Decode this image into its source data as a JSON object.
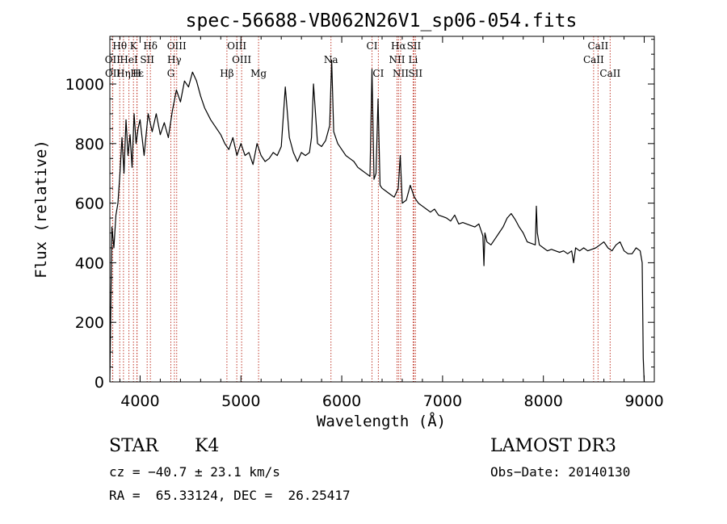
{
  "chart_data": {
    "type": "line",
    "title": "spec-56688-VB062N26V1_sp06-054.fits",
    "xlabel": "Wavelength (Å)",
    "ylabel": "Flux (relative)",
    "xlim": [
      3700,
      9100
    ],
    "ylim": [
      0,
      1160
    ],
    "xticks": [
      4000,
      5000,
      6000,
      7000,
      8000,
      9000
    ],
    "yticks": [
      0,
      200,
      400,
      600,
      800,
      1000
    ],
    "xtick_labels": [
      "4000",
      "5000",
      "6000",
      "7000",
      "8000",
      "9000"
    ],
    "ytick_labels": [
      "0",
      "200",
      "400",
      "600",
      "800",
      "1000"
    ],
    "grid": false,
    "series": [
      {
        "color": "#000000",
        "x": [
          3700,
          3720,
          3740,
          3760,
          3780,
          3800,
          3820,
          3840,
          3860,
          3880,
          3900,
          3920,
          3940,
          3960,
          3980,
          4000,
          4040,
          4080,
          4120,
          4160,
          4200,
          4240,
          4280,
          4320,
          4360,
          4400,
          4440,
          4480,
          4520,
          4560,
          4600,
          4640,
          4700,
          4760,
          4800,
          4840,
          4880,
          4920,
          4960,
          5000,
          5040,
          5080,
          5120,
          5160,
          5200,
          5240,
          5280,
          5320,
          5360,
          5400,
          5440,
          5480,
          5520,
          5560,
          5600,
          5640,
          5680,
          5700,
          5720,
          5760,
          5800,
          5840,
          5880,
          5900,
          5920,
          5960,
          6000,
          6040,
          6080,
          6120,
          6160,
          6200,
          6240,
          6280,
          6300,
          6320,
          6340,
          6360,
          6380,
          6400,
          6440,
          6480,
          6520,
          6560,
          6580,
          6600,
          6640,
          6680,
          6720,
          6760,
          6800,
          6840,
          6880,
          6920,
          6960,
          7000,
          7040,
          7080,
          7120,
          7160,
          7200,
          7240,
          7280,
          7320,
          7360,
          7400,
          7410,
          7420,
          7440,
          7480,
          7520,
          7560,
          7600,
          7640,
          7680,
          7720,
          7760,
          7800,
          7840,
          7880,
          7920,
          7930,
          7940,
          7960,
          8000,
          8040,
          8080,
          8120,
          8160,
          8200,
          8240,
          8280,
          8300,
          8320,
          8360,
          8400,
          8440,
          8480,
          8520,
          8560,
          8600,
          8640,
          8680,
          8720,
          8760,
          8800,
          8840,
          8880,
          8920,
          8960,
          8980,
          8990,
          9000
        ],
        "y": [
          0,
          520,
          450,
          560,
          600,
          700,
          820,
          700,
          880,
          760,
          830,
          720,
          900,
          800,
          850,
          880,
          760,
          900,
          840,
          900,
          830,
          870,
          820,
          910,
          980,
          940,
          1010,
          990,
          1040,
          1010,
          960,
          920,
          880,
          850,
          830,
          800,
          780,
          820,
          760,
          800,
          760,
          770,
          730,
          800,
          760,
          740,
          750,
          770,
          760,
          790,
          990,
          820,
          770,
          740,
          770,
          760,
          770,
          820,
          1000,
          800,
          790,
          810,
          860,
          1080,
          840,
          800,
          780,
          760,
          750,
          740,
          720,
          710,
          700,
          690,
          1050,
          680,
          700,
          950,
          660,
          650,
          640,
          630,
          620,
          650,
          760,
          600,
          610,
          660,
          620,
          600,
          590,
          580,
          570,
          580,
          560,
          555,
          550,
          540,
          560,
          530,
          535,
          530,
          525,
          520,
          530,
          490,
          390,
          500,
          470,
          460,
          480,
          500,
          520,
          550,
          565,
          545,
          520,
          500,
          470,
          465,
          460,
          590,
          500,
          460,
          450,
          440,
          445,
          440,
          435,
          440,
          430,
          440,
          400,
          450,
          440,
          450,
          440,
          445,
          450,
          460,
          470,
          450,
          440,
          460,
          470,
          440,
          430,
          430,
          450,
          440,
          400,
          80,
          0
        ]
      }
    ],
    "lines": [
      {
        "label": "Hθ",
        "x": 3798
      },
      {
        "label": "K",
        "x": 3934
      },
      {
        "label": "Hδ",
        "x": 4102
      },
      {
        "label": "OIII",
        "x": 4363
      },
      {
        "label": "OIII",
        "x": 4959
      },
      {
        "label": "CI",
        "x": 6300
      },
      {
        "label": "Hα",
        "x": 6563
      },
      {
        "label": "SII",
        "x": 6716
      },
      {
        "label": "CaII",
        "x": 8542
      },
      {
        "label": "OII",
        "x": 3727
      },
      {
        "label": "HeI",
        "x": 3889
      },
      {
        "label": "SII",
        "x": 4070
      },
      {
        "label": "Hγ",
        "x": 4340
      },
      {
        "label": "OIII",
        "x": 5007
      },
      {
        "label": "Na",
        "x": 5893
      },
      {
        "label": "NII",
        "x": 6548
      },
      {
        "label": "Li",
        "x": 6708
      },
      {
        "label": "CaII",
        "x": 8498
      },
      {
        "label": "OII",
        "x": 3729
      },
      {
        "label": "Hε",
        "x": 3970
      },
      {
        "label": "Hη",
        "x": 3835
      },
      {
        "label": "H",
        "x": 3968
      },
      {
        "label": "G",
        "x": 4305
      },
      {
        "label": "Hβ",
        "x": 4861
      },
      {
        "label": "Mg",
        "x": 5175
      },
      {
        "label": "CI",
        "x": 6363
      },
      {
        "label": "NII",
        "x": 6584
      },
      {
        "label": "SII",
        "x": 6731
      },
      {
        "label": "CaII",
        "x": 8662
      }
    ],
    "line_label_rows": [
      0,
      0,
      0,
      0,
      0,
      0,
      0,
      0,
      0,
      1,
      1,
      1,
      1,
      1,
      1,
      1,
      1,
      1,
      2,
      2,
      2,
      2,
      2,
      2,
      2,
      2,
      2,
      2,
      2
    ]
  },
  "info": {
    "class": "STAR",
    "subclass": "K4",
    "survey": "LAMOST DR3",
    "cz": "cz = −40.7 ± 23.1 km/s",
    "obs_date": "Obs−Date: 20140130",
    "radec": "RA =  65.33124, DEC =  26.25417"
  }
}
